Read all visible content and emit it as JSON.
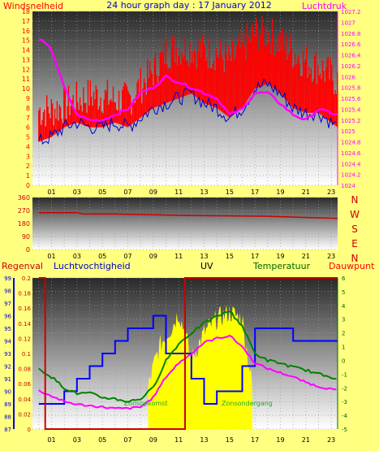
{
  "chart_data": [
    {
      "type": "line",
      "title": "24 hour graph day : 17 January 2012",
      "ylabel": "Windsnelheid",
      "y2label": "Luchtdruk",
      "ylim": [
        0,
        18
      ],
      "y2lim": [
        1024,
        1027.2
      ],
      "yticks": [
        "0",
        "1",
        "2",
        "3",
        "4",
        "5",
        "6",
        "7",
        "8",
        "9",
        "10",
        "11",
        "12",
        "13",
        "14",
        "15",
        "16",
        "17",
        "18"
      ],
      "y2ticks": [
        "1024",
        "1024.2",
        "1024.4",
        "1024.6",
        "1024.8",
        "1025",
        "1025.2",
        "1025.4",
        "1025.6",
        "1025.8",
        "1026",
        "1026.2",
        "1026.4",
        "1026.6",
        "1026.8",
        "1027",
        "1027.2"
      ],
      "xticks": [
        "01",
        "03",
        "05",
        "07",
        "09",
        "11",
        "13",
        "15",
        "17",
        "19",
        "21",
        "23"
      ],
      "series": [
        {
          "name": "gust",
          "color": "#ff0000",
          "hours": [
            0,
            1,
            2,
            3,
            4,
            5,
            6,
            7,
            8,
            9,
            10,
            11,
            12,
            13,
            14,
            15,
            16,
            17,
            18,
            19,
            20,
            21,
            22,
            23.5
          ],
          "values": [
            7,
            7,
            7.5,
            8,
            8.5,
            8.5,
            8,
            8,
            9.5,
            11,
            13,
            13.5,
            13.5,
            13,
            13,
            12,
            13.5,
            15,
            15,
            14,
            13,
            12,
            11.5,
            10
          ]
        },
        {
          "name": "wind",
          "color": "#0000cc",
          "hours": [
            0,
            1,
            2,
            3,
            4,
            5,
            6,
            7,
            8,
            9,
            10,
            11,
            12,
            13,
            14,
            15,
            16,
            17,
            18,
            19,
            20,
            21,
            22,
            23.5
          ],
          "values": [
            4.5,
            5,
            6,
            6.5,
            6,
            6,
            6.5,
            6,
            7,
            8,
            8.5,
            9,
            9.5,
            8.5,
            8,
            7,
            8,
            10,
            10.5,
            9.5,
            8,
            7.5,
            7.5,
            6
          ]
        },
        {
          "name": "luchtdruk",
          "color": "#ff00ff",
          "hours": [
            0,
            1,
            2,
            3,
            4,
            5,
            6,
            7,
            8,
            9,
            10,
            11,
            12,
            13,
            14,
            15,
            16,
            17,
            18,
            19,
            20,
            21,
            22,
            23.5
          ],
          "values": [
            1026.7,
            1026.5,
            1025.8,
            1025.3,
            1025.2,
            1025.2,
            1025.3,
            1025.4,
            1025.7,
            1025.8,
            1026,
            1025.9,
            1025.8,
            1025.7,
            1025.6,
            1025.3,
            1025.4,
            1025.7,
            1025.7,
            1025.5,
            1025.3,
            1025.2,
            1025.4,
            1025.3
          ]
        }
      ]
    },
    {
      "type": "line",
      "ylim": [
        0,
        360
      ],
      "yticks": [
        "0",
        "90",
        "180",
        "270",
        "360"
      ],
      "direction_labels": [
        "N",
        "W",
        "S",
        "E",
        "N"
      ],
      "series": [
        {
          "name": "windrichting",
          "color": "#cc0000",
          "hours": [
            0,
            3,
            3.5,
            6,
            12,
            18,
            23.5
          ],
          "values": [
            255,
            255,
            245,
            245,
            235,
            230,
            215
          ]
        }
      ]
    },
    {
      "type": "line",
      "labels": {
        "regen": "Regenval",
        "vocht": "Luchtvochtigheid",
        "uv": "UV",
        "temp": "Temperatuur",
        "dauw": "Dauwpunt"
      },
      "annotations": {
        "sunrise": "Zonsopkomst",
        "sunset": "Zonsondergang"
      },
      "rain_ticks": [
        "0",
        "0.02",
        "0.04",
        "0.06",
        "0.08",
        "0.1",
        "0.12",
        "0.14",
        "0.16",
        "0.18",
        "0.2"
      ],
      "hum_ticks": [
        "87",
        "88",
        "89",
        "90",
        "91",
        "92",
        "93",
        "94",
        "95",
        "96",
        "97",
        "98",
        "99"
      ],
      "temp_ticks": [
        "-5",
        "-4",
        "-3",
        "-2",
        "-1",
        "0",
        "1",
        "2",
        "3",
        "4",
        "5",
        "6"
      ],
      "rain_lim": [
        0,
        0.2
      ],
      "hum_lim": [
        87,
        99
      ],
      "temp_lim": [
        -5,
        6
      ],
      "sunrise_hour": 8.6,
      "sunset_hour": 16.8,
      "series": [
        {
          "name": "uv",
          "color": "#ffff00",
          "hours": [
            8.6,
            9,
            9.5,
            10,
            10.5,
            11,
            11.5,
            12,
            13,
            14,
            15,
            16,
            16.8
          ],
          "values": [
            -2,
            -0.5,
            1,
            1.8,
            2.5,
            3.5,
            2,
            0,
            2,
            3,
            3.5,
            3,
            -2
          ]
        },
        {
          "name": "luchtvochtigheid",
          "color": "#0000ff",
          "hours": [
            0,
            1,
            2,
            3,
            4,
            5,
            6,
            7,
            8,
            9,
            10,
            11,
            12,
            13,
            14,
            15,
            16,
            17,
            18,
            19,
            20,
            21,
            22,
            23.5
          ],
          "values": [
            89,
            89,
            90,
            91,
            92,
            93,
            94,
            95,
            95,
            96,
            93,
            93,
            91,
            89,
            90,
            90,
            92,
            95,
            95,
            95,
            94,
            94,
            94,
            94
          ]
        },
        {
          "name": "temperatuur",
          "color": "#008000",
          "hours": [
            0,
            1,
            2,
            3,
            4,
            5,
            6,
            7,
            8,
            9,
            10,
            11,
            12,
            13,
            14,
            15,
            16,
            17,
            18,
            19,
            20,
            21,
            22,
            23.5
          ],
          "values": [
            -0.6,
            -1.2,
            -2,
            -2.4,
            -2.4,
            -2.7,
            -2.8,
            -3,
            -2.8,
            -2,
            0,
            1.2,
            2,
            2.7,
            3.2,
            3.6,
            2.5,
            0.5,
            0,
            -0.2,
            -0.5,
            -0.7,
            -1,
            -1.3
          ]
        },
        {
          "name": "dauwpunt",
          "color": "#ff00ff",
          "hours": [
            0,
            1,
            2,
            3,
            4,
            5,
            6,
            7,
            8,
            9,
            10,
            11,
            12,
            13,
            14,
            15,
            16,
            17,
            18,
            19,
            20,
            21,
            22,
            23.5
          ],
          "values": [
            -2.2,
            -2.6,
            -3,
            -3.2,
            -3.3,
            -3.4,
            -3.5,
            -3.5,
            -3.4,
            -2.7,
            -1.2,
            -0.2,
            0.5,
            1.3,
            1.6,
            1.8,
            1.0,
            -0.2,
            -0.6,
            -0.9,
            -1.2,
            -1.6,
            -1.9,
            -2.2
          ]
        },
        {
          "name": "regenval",
          "color": "#cc0000",
          "hours": [
            0,
            0.5,
            0.5,
            11.5,
            11.5,
            23.5
          ],
          "values": [
            0.2,
            0.2,
            0,
            0,
            0.2,
            0.2
          ]
        }
      ]
    }
  ]
}
